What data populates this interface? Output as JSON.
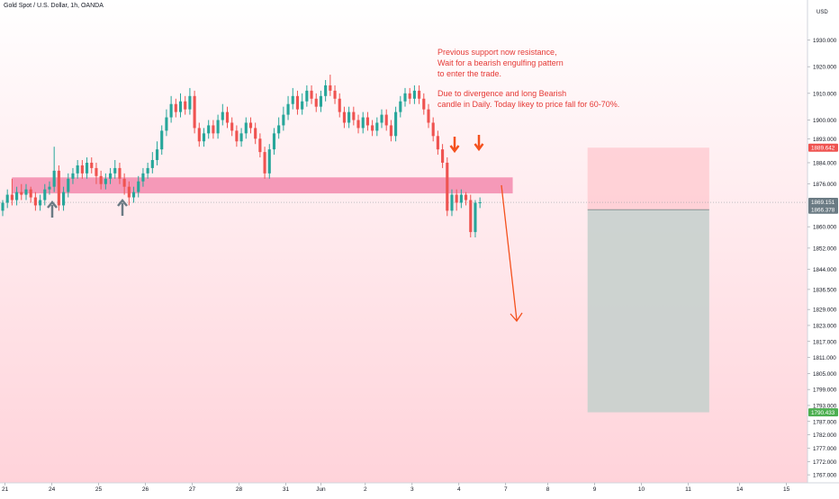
{
  "symbol": {
    "title": "Gold Spot / U.S. Dollar, 1h, OANDA"
  },
  "annotations": {
    "note_1": [
      "Previous support now resistance,",
      "Wait for a bearish engulfing pattern",
      "to enter the trade."
    ],
    "note_2": [
      "Due to divergence and long Bearish",
      "candle in Daily. Today likey to price fall for 60-70%."
    ]
  },
  "colors": {
    "bull": "#26a69a",
    "bear": "#ef5350",
    "zone": "#f48fb1",
    "arrow_up": "#6b7b84",
    "arrow_down": "#f4511e",
    "stop_box": "#ffcdd2",
    "target_box": "#c8d0cd",
    "note_text": "#e53935"
  },
  "chart_data": {
    "type": "candlestick",
    "currency_label": "USD",
    "y_ticks": [
      "1930.000",
      "1920.000",
      "1910.000",
      "1900.000",
      "1893.000",
      "1884.000",
      "1876.000",
      "1860.000",
      "1852.000",
      "1844.000",
      "1836.500",
      "1829.000",
      "1823.000",
      "1817.000",
      "1811.000",
      "1805.000",
      "1799.000",
      "1793.000",
      "1787.000",
      "1782.000",
      "1777.000",
      "1772.000",
      "1767.000"
    ],
    "ylim": [
      1764,
      1945
    ],
    "x_ticks": [
      {
        "label": "21",
        "pos": 0.5
      },
      {
        "label": "24",
        "pos": 10.5
      },
      {
        "label": "25",
        "pos": 20.5
      },
      {
        "label": "26",
        "pos": 30.5
      },
      {
        "label": "27",
        "pos": 40.5
      },
      {
        "label": "28",
        "pos": 50.5
      },
      {
        "label": "31",
        "pos": 60.5
      },
      {
        "label": "Jun",
        "pos": 68
      },
      {
        "label": "2",
        "pos": 77.5
      },
      {
        "label": "3",
        "pos": 87.5
      },
      {
        "label": "4",
        "pos": 97.5
      },
      {
        "label": "7",
        "pos": 107.5
      },
      {
        "label": "8",
        "pos": 116.5
      },
      {
        "label": "9",
        "pos": 126.5
      },
      {
        "label": "10",
        "pos": 136.5
      },
      {
        "label": "11",
        "pos": 146.5
      },
      {
        "label": "14",
        "pos": 157.5
      },
      {
        "label": "15",
        "pos": 167.5
      }
    ],
    "xlim": [
      0,
      172
    ],
    "price_labels": [
      {
        "value": 1889.642,
        "text": "1889.642",
        "color": "#ef5350"
      },
      {
        "value": 1869.151,
        "text": "1869.151",
        "sub": "54:51",
        "color": "#6b7b84"
      },
      {
        "value": 1866.378,
        "text": "1866.378",
        "color": "#6b7b84"
      },
      {
        "value": 1790.433,
        "text": "1790.433",
        "color": "#4caf50"
      }
    ],
    "resistance_zone": {
      "from": 1872.5,
      "to": 1878.5,
      "x_start": 2,
      "x_end": 109
    },
    "position": {
      "x_start": 125,
      "x_end": 151,
      "stop": 1889.642,
      "entry": 1866.378,
      "target": 1790.433
    },
    "current_price": 1869.151,
    "candles": [
      [
        1866,
        1869,
        1864,
        1870
      ],
      [
        1869,
        1872,
        1867,
        1874
      ],
      [
        1872,
        1870,
        1868,
        1878
      ],
      [
        1870,
        1873,
        1868,
        1875
      ],
      [
        1873,
        1872,
        1870,
        1876
      ],
      [
        1872,
        1874,
        1870,
        1876
      ],
      [
        1874,
        1871,
        1869,
        1875
      ],
      [
        1871,
        1868,
        1866,
        1873
      ],
      [
        1868,
        1870,
        1866,
        1872
      ],
      [
        1870,
        1874,
        1868,
        1876
      ],
      [
        1874,
        1875,
        1872,
        1877
      ],
      [
        1875,
        1881,
        1873,
        1890
      ],
      [
        1881,
        1868,
        1866,
        1883
      ],
      [
        1868,
        1873,
        1866,
        1875
      ],
      [
        1873,
        1878,
        1871,
        1880
      ],
      [
        1878,
        1880,
        1876,
        1882
      ],
      [
        1880,
        1883,
        1878,
        1885
      ],
      [
        1883,
        1880,
        1878,
        1885
      ],
      [
        1880,
        1884,
        1878,
        1886
      ],
      [
        1884,
        1882,
        1880,
        1886
      ],
      [
        1882,
        1879,
        1876,
        1884
      ],
      [
        1879,
        1876,
        1874,
        1881
      ],
      [
        1876,
        1878,
        1874,
        1880
      ],
      [
        1878,
        1880,
        1876,
        1882
      ],
      [
        1880,
        1882,
        1878,
        1885
      ],
      [
        1882,
        1878,
        1876,
        1884
      ],
      [
        1878,
        1875,
        1872,
        1880
      ],
      [
        1875,
        1871,
        1868,
        1877
      ],
      [
        1871,
        1873,
        1869,
        1875
      ],
      [
        1873,
        1877,
        1871,
        1879
      ],
      [
        1877,
        1880,
        1875,
        1882
      ],
      [
        1880,
        1882,
        1878,
        1884
      ],
      [
        1882,
        1885,
        1880,
        1888
      ],
      [
        1885,
        1889,
        1883,
        1892
      ],
      [
        1889,
        1896,
        1887,
        1898
      ],
      [
        1896,
        1901,
        1894,
        1904
      ],
      [
        1901,
        1906,
        1899,
        1909
      ],
      [
        1906,
        1903,
        1901,
        1908
      ],
      [
        1903,
        1907,
        1901,
        1910
      ],
      [
        1907,
        1904,
        1902,
        1909
      ],
      [
        1904,
        1909,
        1902,
        1912
      ],
      [
        1909,
        1897,
        1895,
        1911
      ],
      [
        1897,
        1892,
        1890,
        1899
      ],
      [
        1892,
        1895,
        1890,
        1897
      ],
      [
        1895,
        1898,
        1893,
        1900
      ],
      [
        1898,
        1895,
        1893,
        1900
      ],
      [
        1895,
        1900,
        1893,
        1902
      ],
      [
        1900,
        1903,
        1898,
        1906
      ],
      [
        1903,
        1899,
        1897,
        1905
      ],
      [
        1899,
        1896,
        1894,
        1901
      ],
      [
        1896,
        1892,
        1890,
        1898
      ],
      [
        1892,
        1895,
        1890,
        1897
      ],
      [
        1895,
        1899,
        1893,
        1901
      ],
      [
        1899,
        1897,
        1895,
        1901
      ],
      [
        1897,
        1893,
        1891,
        1899
      ],
      [
        1893,
        1888,
        1886,
        1895
      ],
      [
        1888,
        1880,
        1878,
        1890
      ],
      [
        1880,
        1889,
        1878,
        1891
      ],
      [
        1889,
        1895,
        1887,
        1897
      ],
      [
        1895,
        1898,
        1893,
        1901
      ],
      [
        1898,
        1902,
        1896,
        1905
      ],
      [
        1902,
        1906,
        1900,
        1909
      ],
      [
        1906,
        1909,
        1904,
        1912
      ],
      [
        1909,
        1904,
        1902,
        1911
      ],
      [
        1904,
        1907,
        1902,
        1910
      ],
      [
        1907,
        1911,
        1905,
        1913
      ],
      [
        1911,
        1908,
        1906,
        1913
      ],
      [
        1908,
        1905,
        1903,
        1910
      ],
      [
        1905,
        1909,
        1903,
        1911
      ],
      [
        1909,
        1913,
        1907,
        1915
      ],
      [
        1913,
        1911,
        1909,
        1917
      ],
      [
        1911,
        1908,
        1906,
        1913
      ],
      [
        1908,
        1903,
        1901,
        1910
      ],
      [
        1903,
        1899,
        1897,
        1905
      ],
      [
        1899,
        1903,
        1897,
        1905
      ],
      [
        1903,
        1900,
        1898,
        1905
      ],
      [
        1900,
        1897,
        1895,
        1902
      ],
      [
        1897,
        1901,
        1895,
        1903
      ],
      [
        1901,
        1898,
        1896,
        1903
      ],
      [
        1898,
        1896,
        1894,
        1900
      ],
      [
        1896,
        1899,
        1894,
        1901
      ],
      [
        1899,
        1902,
        1897,
        1904
      ],
      [
        1902,
        1898,
        1896,
        1904
      ],
      [
        1898,
        1894,
        1892,
        1900
      ],
      [
        1894,
        1903,
        1892,
        1905
      ],
      [
        1903,
        1907,
        1901,
        1909
      ],
      [
        1907,
        1910,
        1905,
        1912
      ],
      [
        1910,
        1908,
        1906,
        1912
      ],
      [
        1908,
        1911,
        1906,
        1913
      ],
      [
        1911,
        1908,
        1906,
        1913
      ],
      [
        1908,
        1904,
        1902,
        1910
      ],
      [
        1904,
        1899,
        1897,
        1906
      ],
      [
        1899,
        1894,
        1892,
        1901
      ],
      [
        1894,
        1889,
        1887,
        1896
      ],
      [
        1889,
        1884,
        1882,
        1891
      ],
      [
        1884,
        1866,
        1864,
        1886
      ],
      [
        1866,
        1872,
        1864,
        1874
      ],
      [
        1872,
        1869,
        1866,
        1874
      ],
      [
        1869,
        1872,
        1867,
        1874
      ],
      [
        1872,
        1870,
        1868,
        1873
      ],
      [
        1870,
        1858,
        1856,
        1872
      ],
      [
        1858,
        1869,
        1856,
        1870
      ],
      [
        1869,
        1869.151,
        1867,
        1871
      ]
    ]
  }
}
